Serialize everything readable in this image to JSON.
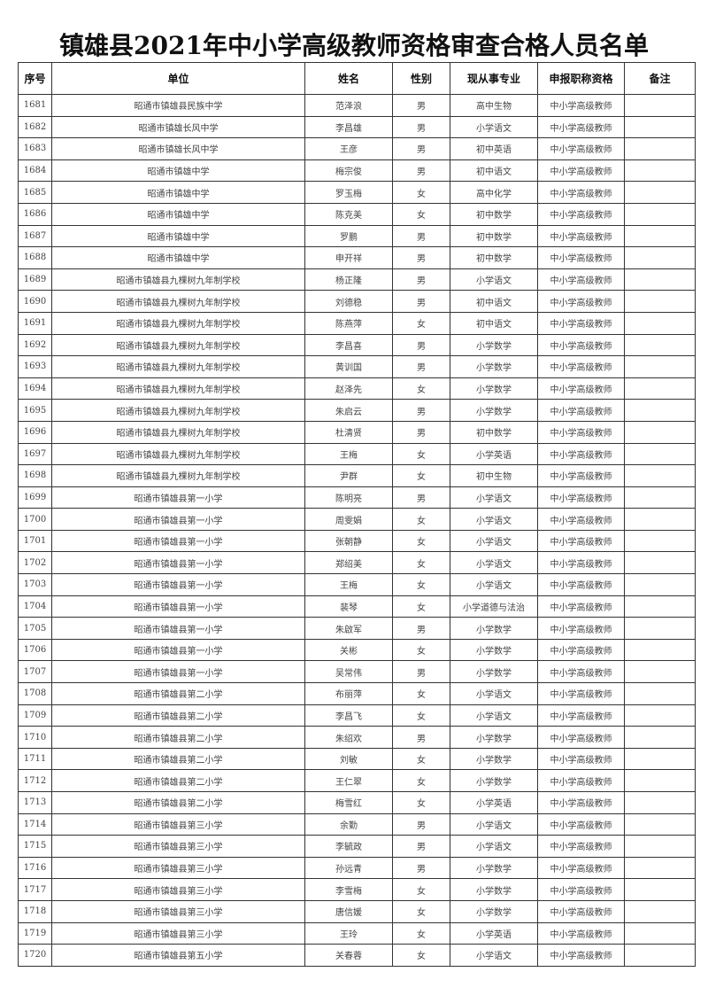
{
  "title": "镇雄县2021年中小学高级教师资格审查合格人员名单",
  "columns": [
    "序号",
    "单位",
    "姓名",
    "性别",
    "现从事专业",
    "申报职称资格",
    "备注"
  ],
  "rows": [
    [
      "1681",
      "昭通市镇雄县民族中学",
      "范泽浪",
      "男",
      "高中生物",
      "中小学高级教师",
      ""
    ],
    [
      "1682",
      "昭通市镇雄长风中学",
      "李昌雄",
      "男",
      "小学语文",
      "中小学高级教师",
      ""
    ],
    [
      "1683",
      "昭通市镇雄长风中学",
      "王彦",
      "男",
      "初中英语",
      "中小学高级教师",
      ""
    ],
    [
      "1684",
      "昭通市镇雄中学",
      "梅宗俊",
      "男",
      "初中语文",
      "中小学高级教师",
      ""
    ],
    [
      "1685",
      "昭通市镇雄中学",
      "罗玉梅",
      "女",
      "高中化学",
      "中小学高级教师",
      ""
    ],
    [
      "1686",
      "昭通市镇雄中学",
      "陈克美",
      "女",
      "初中数学",
      "中小学高级教师",
      ""
    ],
    [
      "1687",
      "昭通市镇雄中学",
      "罗鹏",
      "男",
      "初中数学",
      "中小学高级教师",
      ""
    ],
    [
      "1688",
      "昭通市镇雄中学",
      "申开祥",
      "男",
      "初中数学",
      "中小学高级教师",
      ""
    ],
    [
      "1689",
      "昭通市镇雄县九棵树九年制学校",
      "杨正隆",
      "男",
      "小学语文",
      "中小学高级教师",
      ""
    ],
    [
      "1690",
      "昭通市镇雄县九棵树九年制学校",
      "刘德稳",
      "男",
      "初中语文",
      "中小学高级教师",
      ""
    ],
    [
      "1691",
      "昭通市镇雄县九棵树九年制学校",
      "陈燕萍",
      "女",
      "初中语文",
      "中小学高级教师",
      ""
    ],
    [
      "1692",
      "昭通市镇雄县九棵树九年制学校",
      "李昌喜",
      "男",
      "小学数学",
      "中小学高级教师",
      ""
    ],
    [
      "1693",
      "昭通市镇雄县九棵树九年制学校",
      "黄训国",
      "男",
      "小学数学",
      "中小学高级教师",
      ""
    ],
    [
      "1694",
      "昭通市镇雄县九棵树九年制学校",
      "赵泽先",
      "女",
      "小学数学",
      "中小学高级教师",
      ""
    ],
    [
      "1695",
      "昭通市镇雄县九棵树九年制学校",
      "朱启云",
      "男",
      "小学数学",
      "中小学高级教师",
      ""
    ],
    [
      "1696",
      "昭通市镇雄县九棵树九年制学校",
      "杜清贤",
      "男",
      "初中数学",
      "中小学高级教师",
      ""
    ],
    [
      "1697",
      "昭通市镇雄县九棵树九年制学校",
      "王梅",
      "女",
      "小学英语",
      "中小学高级教师",
      ""
    ],
    [
      "1698",
      "昭通市镇雄县九棵树九年制学校",
      "尹群",
      "女",
      "初中生物",
      "中小学高级教师",
      ""
    ],
    [
      "1699",
      "昭通市镇雄县第一小学",
      "陈明亮",
      "男",
      "小学语文",
      "中小学高级教师",
      ""
    ],
    [
      "1700",
      "昭通市镇雄县第一小学",
      "周雯娟",
      "女",
      "小学语文",
      "中小学高级教师",
      ""
    ],
    [
      "1701",
      "昭通市镇雄县第一小学",
      "张朝静",
      "女",
      "小学语文",
      "中小学高级教师",
      ""
    ],
    [
      "1702",
      "昭通市镇雄县第一小学",
      "郑绍美",
      "女",
      "小学语文",
      "中小学高级教师",
      ""
    ],
    [
      "1703",
      "昭通市镇雄县第一小学",
      "王梅",
      "女",
      "小学语文",
      "中小学高级教师",
      ""
    ],
    [
      "1704",
      "昭通市镇雄县第一小学",
      "裴琴",
      "女",
      "小学道德与法治",
      "中小学高级教师",
      ""
    ],
    [
      "1705",
      "昭通市镇雄县第一小学",
      "朱啟军",
      "男",
      "小学数学",
      "中小学高级教师",
      ""
    ],
    [
      "1706",
      "昭通市镇雄县第一小学",
      "关彬",
      "女",
      "小学数学",
      "中小学高级教师",
      ""
    ],
    [
      "1707",
      "昭通市镇雄县第一小学",
      "吴常伟",
      "男",
      "小学数学",
      "中小学高级教师",
      ""
    ],
    [
      "1708",
      "昭通市镇雄县第二小学",
      "布丽萍",
      "女",
      "小学语文",
      "中小学高级教师",
      ""
    ],
    [
      "1709",
      "昭通市镇雄县第二小学",
      "李昌飞",
      "女",
      "小学语文",
      "中小学高级教师",
      ""
    ],
    [
      "1710",
      "昭通市镇雄县第二小学",
      "朱绍欢",
      "男",
      "小学数学",
      "中小学高级教师",
      ""
    ],
    [
      "1711",
      "昭通市镇雄县第二小学",
      "刘敏",
      "女",
      "小学数学",
      "中小学高级教师",
      ""
    ],
    [
      "1712",
      "昭通市镇雄县第二小学",
      "王仁翠",
      "女",
      "小学数学",
      "中小学高级教师",
      ""
    ],
    [
      "1713",
      "昭通市镇雄县第二小学",
      "梅雪红",
      "女",
      "小学英语",
      "中小学高级教师",
      ""
    ],
    [
      "1714",
      "昭通市镇雄县第三小学",
      "余勤",
      "男",
      "小学语文",
      "中小学高级教师",
      ""
    ],
    [
      "1715",
      "昭通市镇雄县第三小学",
      "李毓政",
      "男",
      "小学语文",
      "中小学高级教师",
      ""
    ],
    [
      "1716",
      "昭通市镇雄县第三小学",
      "孙远青",
      "男",
      "小学数学",
      "中小学高级教师",
      ""
    ],
    [
      "1717",
      "昭通市镇雄县第三小学",
      "李雪梅",
      "女",
      "小学数学",
      "中小学高级教师",
      ""
    ],
    [
      "1718",
      "昭通市镇雄县第三小学",
      "唐信媛",
      "女",
      "小学数学",
      "中小学高级教师",
      ""
    ],
    [
      "1719",
      "昭通市镇雄县第三小学",
      "王玲",
      "女",
      "小学英语",
      "中小学高级教师",
      ""
    ],
    [
      "1720",
      "昭通市镇雄县第五小学",
      "关春蓉",
      "女",
      "小学语文",
      "中小学高级教师",
      ""
    ]
  ]
}
